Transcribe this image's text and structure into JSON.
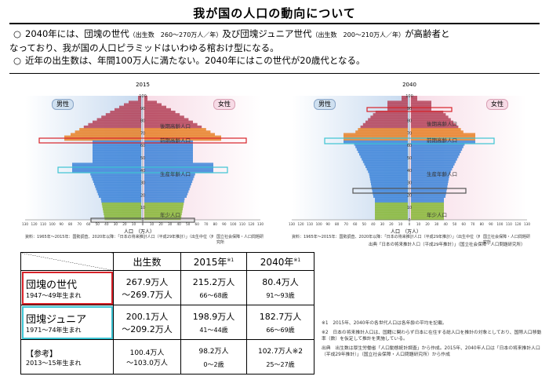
{
  "title": "我が国の人口の動向について",
  "bullets": [
    {
      "mark": "○",
      "t1": "2040年には、団塊の世代",
      "s1": "（出生数　260～270万人／年）",
      "t2": "及び団塊ジュニア世代",
      "s2": "（出生数　200～210万人／年）",
      "t3": "が高齢者と",
      "line2": "なっており、我が国の人口ピラミッドはいわゆる棺おけ型になる。"
    },
    {
      "mark": "○",
      "t1": "近年の出生数は、年間100万人に満たない。2040年にはこの世代が20歳代となる。"
    }
  ],
  "panels": [
    {
      "year": "2015",
      "male": "男性",
      "female": "女性",
      "seg_old": "後期高齢人口",
      "seg_early": "前期高齢人口",
      "seg_work": "生産年齢人口",
      "seg_young": "年少人口",
      "unit": "人口　（万人）",
      "foot": "資料：1965年～2015年：国勢調査、2020年以降：「日本の将来推計人口（平成29年推計）」（出生中位（死亡中位）推計）",
      "logo": "国立社会保障・人口問題研究所"
    },
    {
      "year": "2040",
      "male": "男性",
      "female": "女性",
      "seg_old": "後期高齢人口",
      "seg_early": "前期高齢人口",
      "seg_work": "生産年齢人口",
      "seg_young": "年少人口",
      "unit": "人口　（万人）",
      "foot": "資料：1965年～2015年：国勢調査、2020年以降：「日本の将来推計人口（平成29年推計）」（出生中位（死亡中位）推計）",
      "logo": "国立社会保障・人口問題研究所"
    }
  ],
  "age_ticks": [
    "100",
    "90",
    "80",
    "70",
    "60",
    "50",
    "40",
    "30",
    "20",
    "10",
    "0"
  ],
  "pop_ticks": [
    "130",
    "120",
    "110",
    "100",
    "90",
    "80",
    "70",
    "60",
    "50",
    "40",
    "30",
    "20",
    "10",
    "0",
    "10",
    "20",
    "30",
    "40",
    "50",
    "60",
    "70",
    "80",
    "90",
    "100",
    "110",
    "120",
    "130"
  ],
  "source": "出典「日本の将来推計人口（平成29年推計）」（国立社会保障・人口問題研究所）",
  "table": {
    "headers": {
      "births": "出生数",
      "y2015": "2015年",
      "y2015_note": "※1",
      "y2040": "2040年",
      "y2040_note": "※1"
    },
    "rows": [
      {
        "name": "団塊の世代",
        "years": "1947～49年生まれ",
        "births1": "267.9万人",
        "births2": "～269.7万人",
        "p2015": "215.2万人",
        "a2015": "66～68歳",
        "p2040": "80.4万人",
        "a2040": "91～93歳"
      },
      {
        "name": "団塊ジュニア",
        "years": "1971～74年生まれ",
        "births1": "200.1万人",
        "births2": "～209.2万人",
        "p2015": "198.9万人",
        "a2015": "41～44歳",
        "p2040": "182.7万人",
        "a2040": "66～69歳"
      },
      {
        "name": "【参考】",
        "years": "2013～15年生まれ",
        "births1": "100.4万人",
        "births2": "～103.0万人",
        "p2015": "98.2万人",
        "a2015": "0～2歳",
        "p2040": "102.7万人",
        "p2040_note": "※2",
        "a2040": "25～27歳"
      }
    ]
  },
  "notes": {
    "n1": "※1　2015年、2040年の各世代人口は各年齢の平均を記載。",
    "n2": "※2　日本の将来推計人口は、国籍に関わらず日本に在住する総人口を推計の対象としており、国際人口移動率（数）を仮定して推計を実施している。",
    "n3": "出典　出生数は厚生労働省「人口動態統計調査」から作成。2015年、2040年人口は「日本の将来推計人口（平成29年推計）」（国立社会保障・人口問題研究所）から作成"
  }
}
